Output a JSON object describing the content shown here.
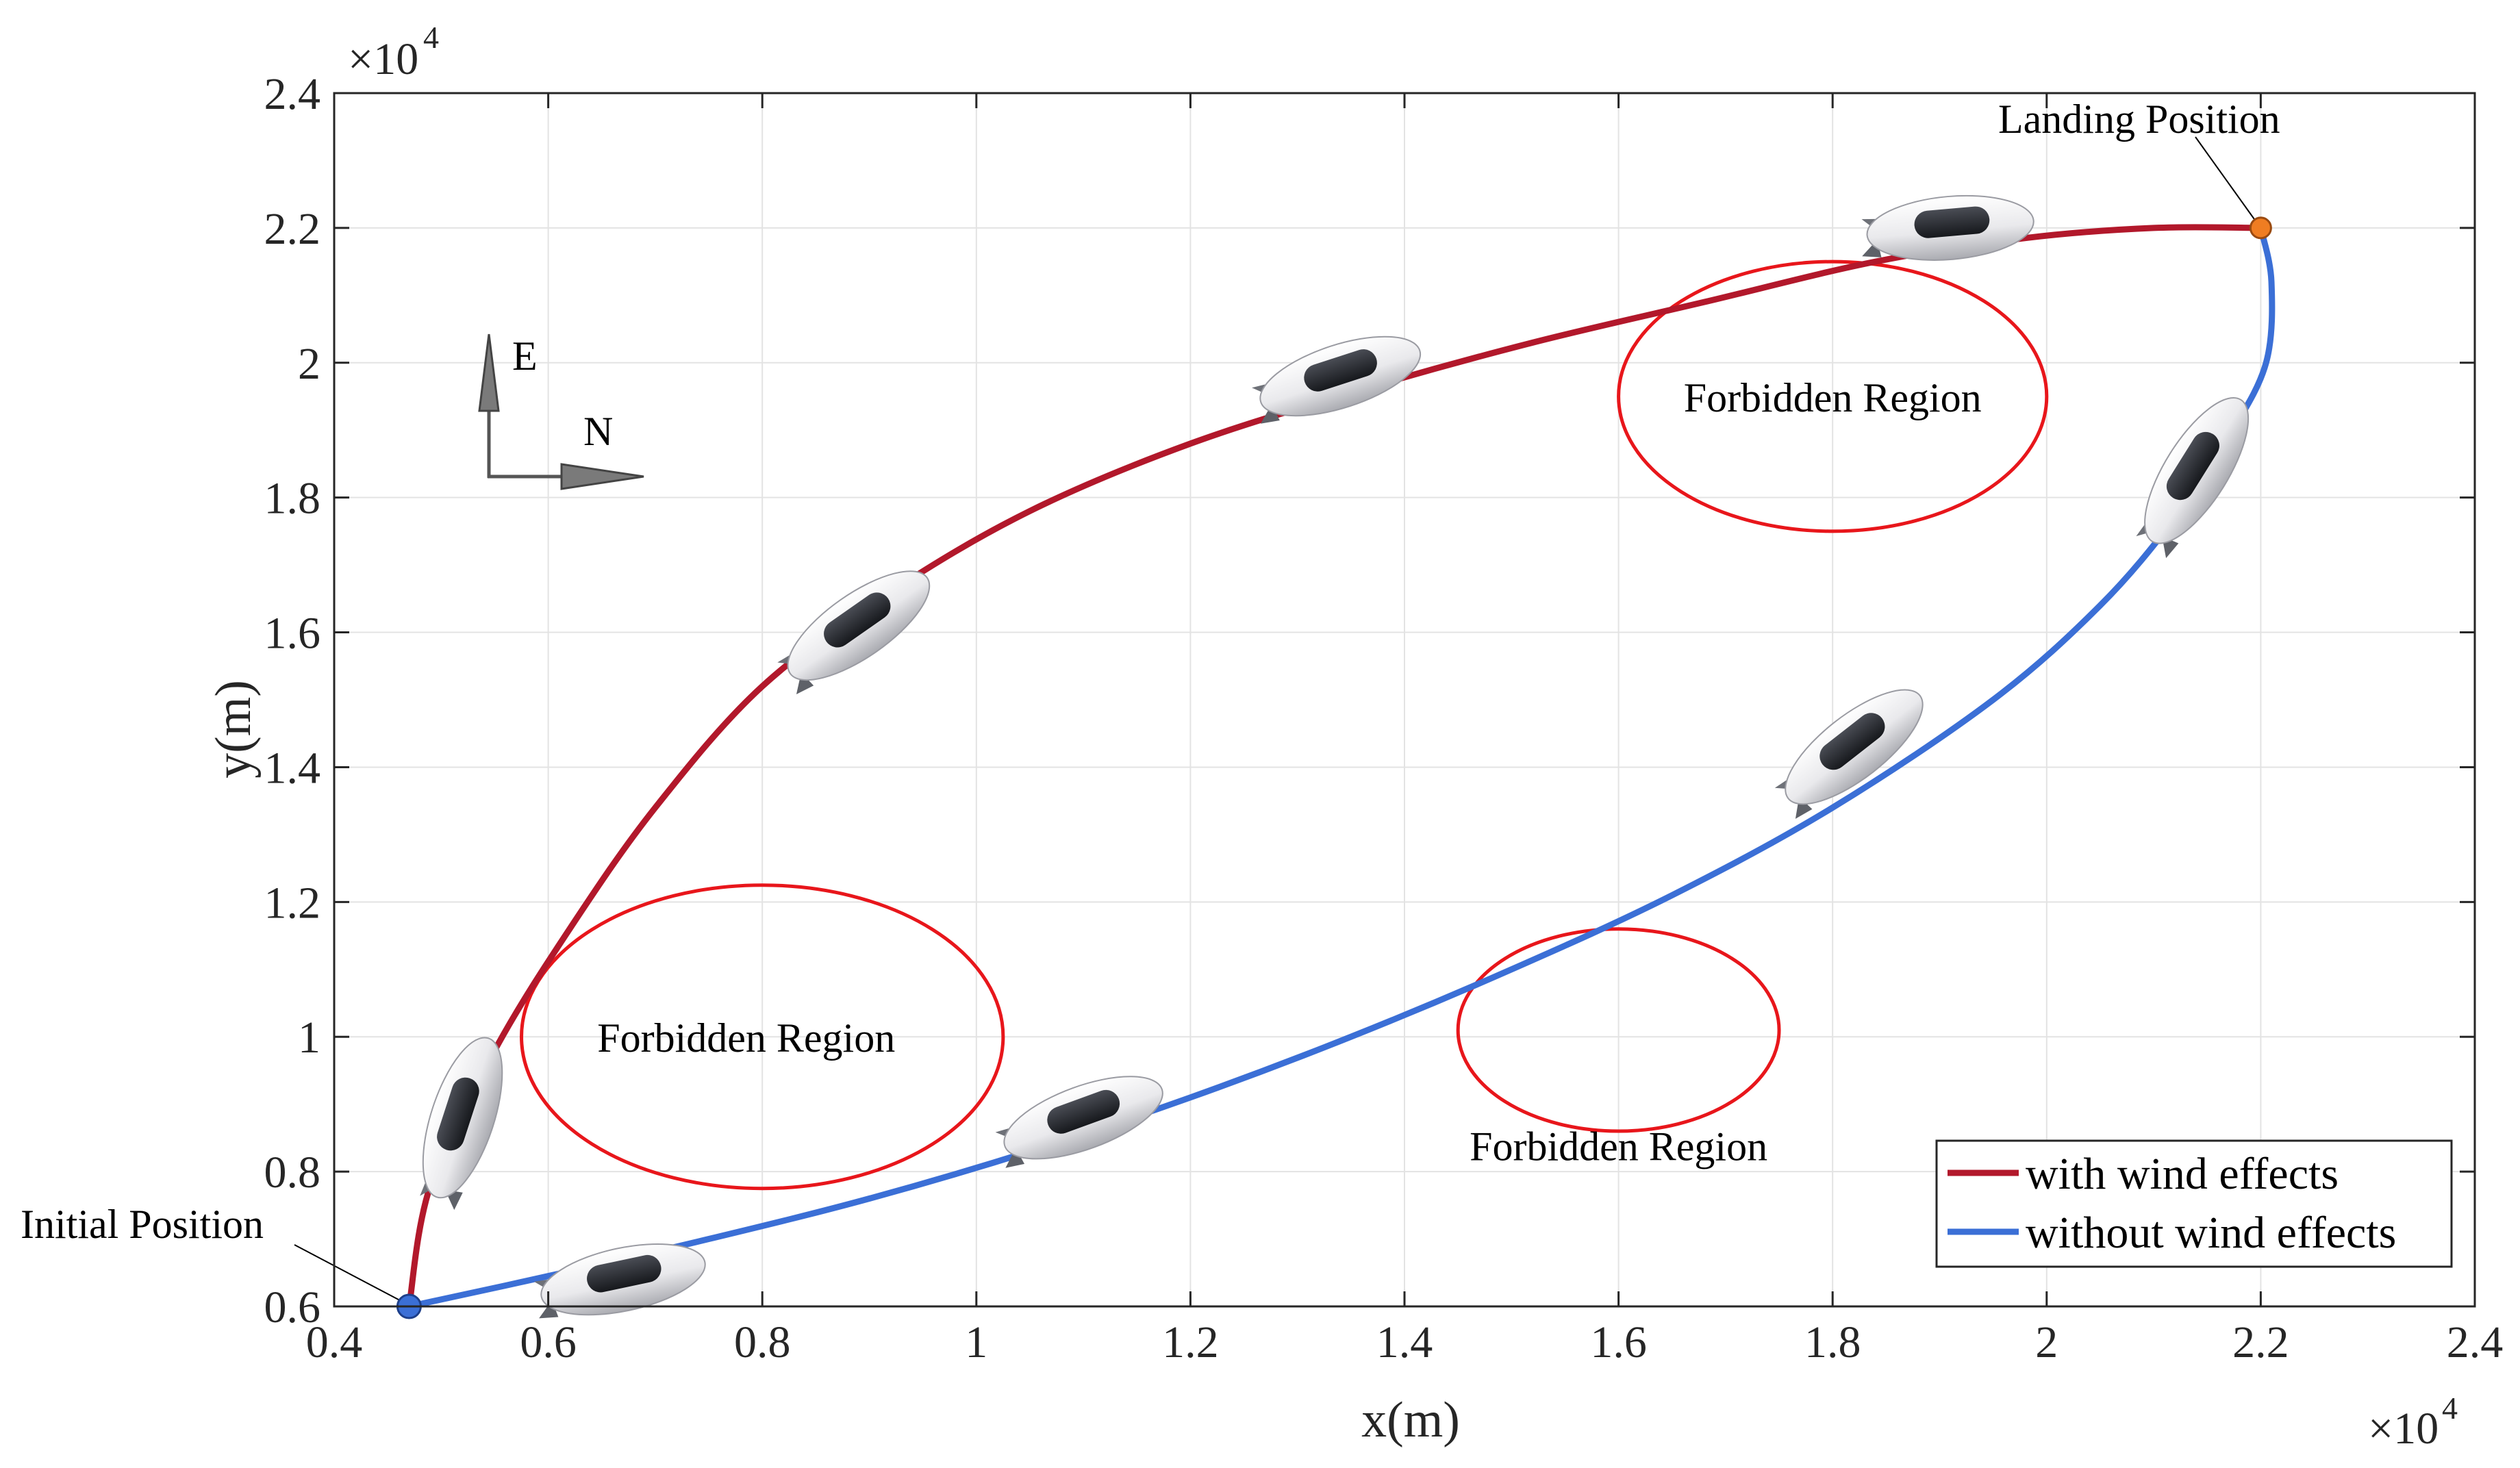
{
  "chart_data": {
    "type": "line",
    "xlabel": "x(m)",
    "ylabel": "y(m)",
    "x_exponent_label": "×10",
    "x_exponent_power": "4",
    "y_exponent_label": "×10",
    "y_exponent_power": "4",
    "xlim": [
      0.4,
      2.4
    ],
    "ylim": [
      0.6,
      2.4
    ],
    "x_ticks": [
      0.4,
      0.6,
      0.8,
      1.0,
      1.2,
      1.4,
      1.6,
      1.8,
      2.0,
      2.2,
      2.4
    ],
    "y_ticks": [
      0.6,
      0.8,
      1.0,
      1.2,
      1.4,
      1.6,
      1.8,
      2.0,
      2.2,
      2.4
    ],
    "x_tick_labels": [
      "0.4",
      "0.6",
      "0.8",
      "1",
      "1.2",
      "1.4",
      "1.6",
      "1.8",
      "2",
      "2.2",
      "2.4"
    ],
    "y_tick_labels": [
      "0.6",
      "0.8",
      "1",
      "1.2",
      "1.4",
      "1.6",
      "1.8",
      "2",
      "2.2",
      "2.4"
    ],
    "grid": true,
    "legend_position": "bottom-right",
    "series": [
      {
        "name": "with wind effects",
        "color": "#b2182b",
        "x": [
          0.47,
          0.49,
          0.55,
          0.62,
          0.7,
          0.8,
          0.92,
          1.05,
          1.2,
          1.36,
          1.52,
          1.68,
          1.84,
          1.98,
          2.1,
          2.2
        ],
        "y": [
          0.6,
          0.78,
          0.98,
          1.16,
          1.34,
          1.52,
          1.66,
          1.78,
          1.88,
          1.96,
          2.03,
          2.09,
          2.15,
          2.185,
          2.2,
          2.2
        ]
      },
      {
        "name": "without wind effects",
        "color": "#3b6fd6",
        "x": [
          0.47,
          0.6,
          0.75,
          0.9,
          1.05,
          1.2,
          1.35,
          1.5,
          1.65,
          1.8,
          1.95,
          2.05,
          2.12,
          2.17,
          2.205,
          2.21,
          2.2
        ],
        "y": [
          0.6,
          0.645,
          0.7,
          0.76,
          0.83,
          0.91,
          1.0,
          1.1,
          1.21,
          1.34,
          1.5,
          1.64,
          1.77,
          1.89,
          2.0,
          2.12,
          2.2
        ]
      }
    ],
    "forbidden_regions": [
      {
        "label": "Forbidden Region",
        "cx": 1.8,
        "cy": 1.95,
        "rx": 0.2,
        "ry": 0.2
      },
      {
        "label": "Forbidden Region",
        "cx": 0.8,
        "cy": 1.0,
        "rx": 0.225,
        "ry": 0.225
      },
      {
        "label": "Forbidden Region",
        "cx": 1.6,
        "cy": 1.01,
        "rx": 0.15,
        "ry": 0.15
      }
    ],
    "points": [
      {
        "label": "Initial Position",
        "x": 0.47,
        "y": 0.6,
        "color": "#3b6fd6"
      },
      {
        "label": "Landing Position",
        "x": 2.2,
        "y": 2.2,
        "color": "#ef7d22"
      }
    ],
    "airships": [
      {
        "x": 0.52,
        "y": 0.88,
        "angle": -72
      },
      {
        "x": 0.67,
        "y": 0.64,
        "angle": -12
      },
      {
        "x": 0.89,
        "y": 1.61,
        "angle": -35
      },
      {
        "x": 1.1,
        "y": 0.88,
        "angle": -20
      },
      {
        "x": 1.34,
        "y": 1.98,
        "angle": -18
      },
      {
        "x": 1.82,
        "y": 1.43,
        "angle": -38
      },
      {
        "x": 1.91,
        "y": 2.2,
        "angle": -5
      },
      {
        "x": 2.14,
        "y": 1.84,
        "angle": -58
      }
    ],
    "compass": {
      "up_label": "E",
      "right_label": "N"
    }
  }
}
